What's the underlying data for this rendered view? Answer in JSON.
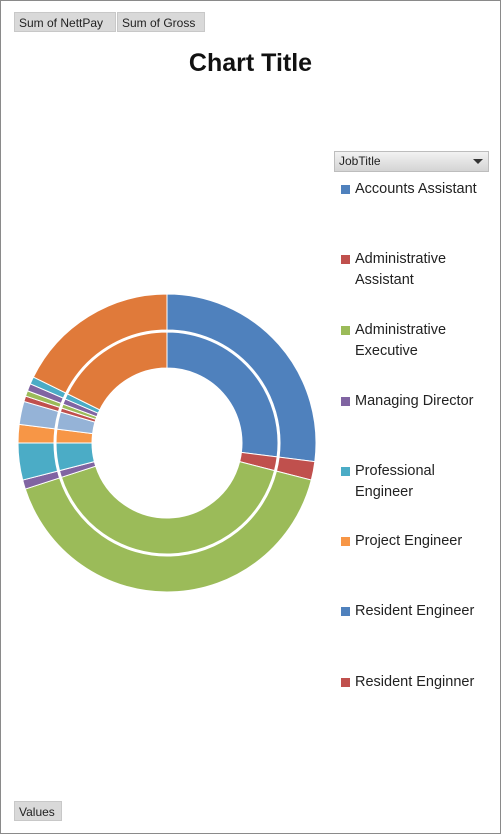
{
  "buttons": {
    "sum_nett": "Sum of NettPay",
    "sum_gross": "Sum of Gross",
    "values": "Values"
  },
  "legend_filter": {
    "label": "JobTitle"
  },
  "chart_data": {
    "type": "doughnut",
    "title": "Chart Title",
    "rings": [
      "Sum of NettPay",
      "Sum of Gross"
    ],
    "categories": [
      "Accounts Assistant",
      "Administrative Assistant",
      "Administrative Executive",
      "Managing Director",
      "Professional Engineer",
      "Project Engineer",
      "Resident Engineer",
      "Resident Enginner"
    ],
    "colors": [
      "#4f81bd",
      "#c0504d",
      "#9bbb59",
      "#8064a2",
      "#4bacc6",
      "#f79646",
      "#4f81bd",
      "#c0504d"
    ],
    "legend_position": "right",
    "series": [
      {
        "name": "Sum of NettPay",
        "segments": [
          {
            "category": "Resident Engineer",
            "value": 27.0,
            "color": "#4f81bd"
          },
          {
            "category": "Resident Enginner",
            "value": 2.0,
            "color": "#c0504d"
          },
          {
            "category": "Administrative Executive",
            "value": 41.0,
            "color": "#9bbb59"
          },
          {
            "category": "Managing Director",
            "value": 1.0,
            "color": "#8064a2"
          },
          {
            "category": "Professional Engineer",
            "value": 4.0,
            "color": "#4bacc6"
          },
          {
            "category": "Project Engineer",
            "value": 2.0,
            "color": "#f79646"
          },
          {
            "category": "Accounts Assistant",
            "value": 2.5,
            "color": "#95b3d7"
          },
          {
            "category": "Administrative Assistant",
            "value": 0.6,
            "color": "#c0504d"
          },
          {
            "category": "Administrative Executive",
            "value": 0.6,
            "color": "#9bbb59"
          },
          {
            "category": "Managing Director",
            "value": 0.8,
            "color": "#8064a2"
          },
          {
            "category": "Professional Engineer",
            "value": 0.8,
            "color": "#4bacc6"
          },
          {
            "category": "Project Engineer",
            "value": 17.7,
            "color": "#e07a3a"
          }
        ]
      },
      {
        "name": "Sum of Gross",
        "segments": [
          {
            "category": "Resident Engineer",
            "value": 27.0,
            "color": "#4f81bd"
          },
          {
            "category": "Resident Enginner",
            "value": 2.0,
            "color": "#c0504d"
          },
          {
            "category": "Administrative Executive",
            "value": 41.0,
            "color": "#9bbb59"
          },
          {
            "category": "Managing Director",
            "value": 1.0,
            "color": "#8064a2"
          },
          {
            "category": "Professional Engineer",
            "value": 4.0,
            "color": "#4bacc6"
          },
          {
            "category": "Project Engineer",
            "value": 2.0,
            "color": "#f79646"
          },
          {
            "category": "Accounts Assistant",
            "value": 2.5,
            "color": "#95b3d7"
          },
          {
            "category": "Administrative Assistant",
            "value": 0.6,
            "color": "#c0504d"
          },
          {
            "category": "Administrative Executive",
            "value": 0.6,
            "color": "#9bbb59"
          },
          {
            "category": "Managing Director",
            "value": 0.8,
            "color": "#8064a2"
          },
          {
            "category": "Professional Engineer",
            "value": 0.8,
            "color": "#4bacc6"
          },
          {
            "category": "Project Engineer",
            "value": 17.7,
            "color": "#e07a3a"
          }
        ]
      }
    ]
  }
}
